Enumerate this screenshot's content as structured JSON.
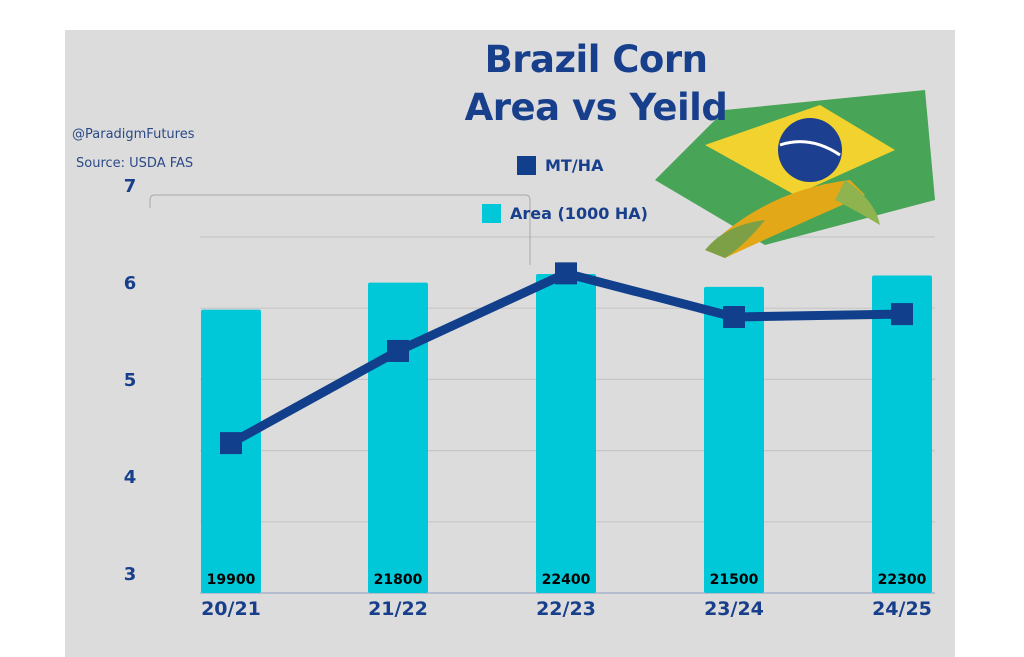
{
  "chart_data": {
    "type": "bar+line",
    "title": "Brazil Corn",
    "subtitle": "Area vs Yeild",
    "annotations": [
      "@ParadigmFutures",
      "Source: USDA FAS"
    ],
    "categories": [
      "20/21",
      "21/22",
      "22/23",
      "23/24",
      "24/25"
    ],
    "series": [
      {
        "name": "Area (1000 HA)",
        "type": "bar",
        "axis": "secondary",
        "values": [
          19900,
          21800,
          22400,
          21500,
          22300
        ],
        "color": "#00c8d8"
      },
      {
        "name": "MT/HA",
        "type": "line",
        "axis": "primary",
        "values": [
          4.37,
          5.32,
          6.12,
          5.67,
          5.7
        ],
        "color": "#123f8c"
      }
    ],
    "y_ticks": [
      "7",
      "6",
      "5",
      "4",
      "3"
    ],
    "ylim": [
      3,
      7
    ],
    "y2lim": [
      0,
      25000
    ],
    "grid": true,
    "legend": "top-center",
    "background": "#dcdcdc",
    "decoration": "brazil-flag-and-corn-icon"
  }
}
